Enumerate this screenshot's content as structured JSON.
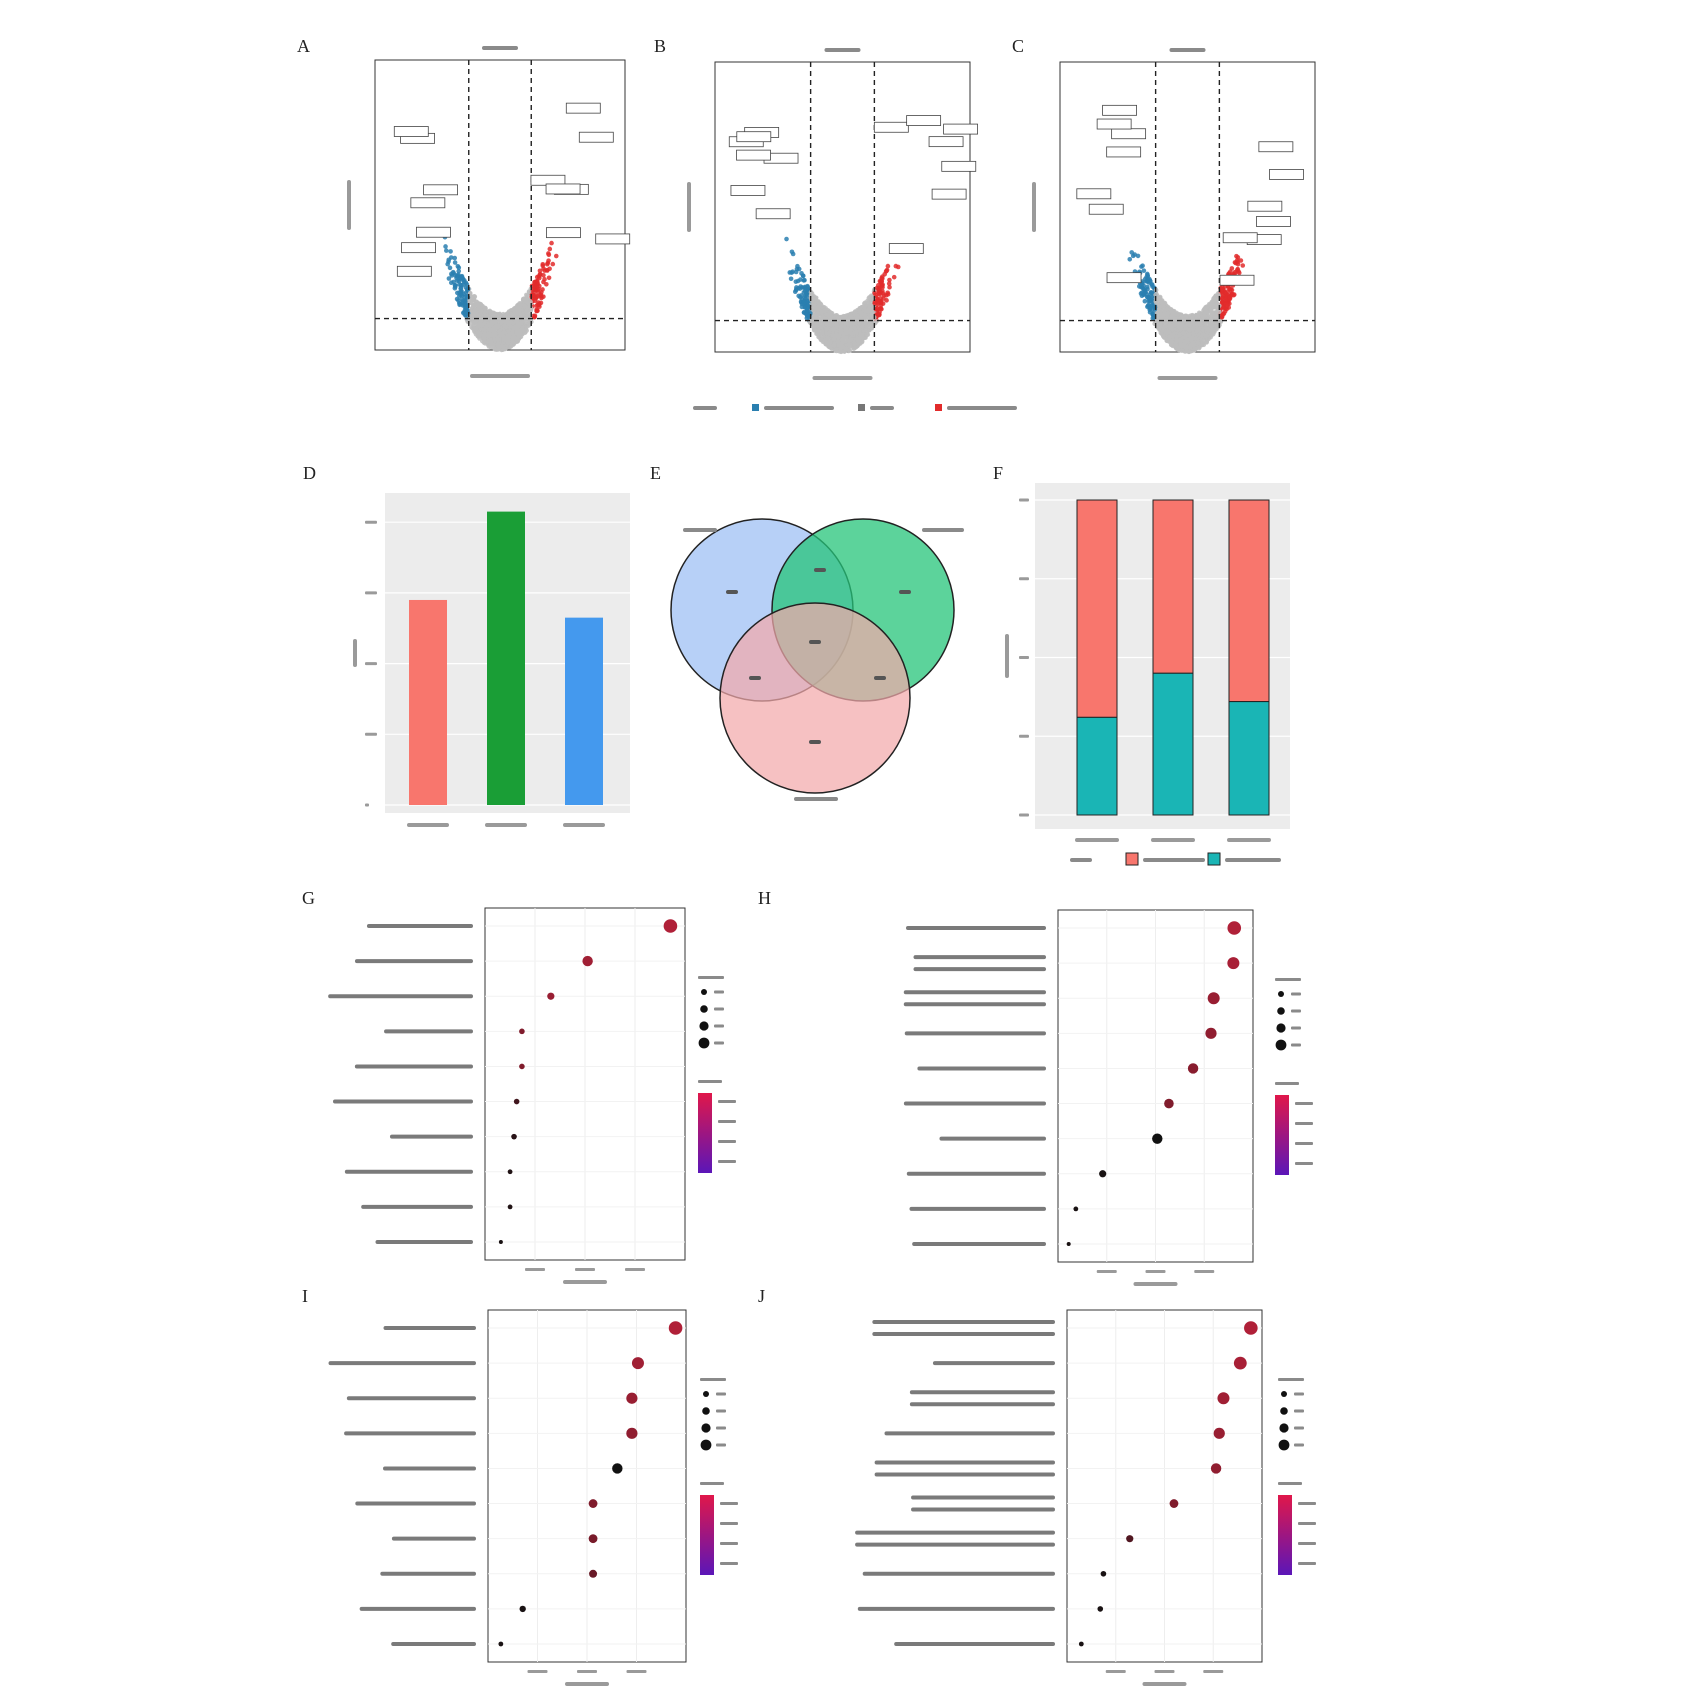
{
  "panels": {
    "A": {
      "letter": "A"
    },
    "B": {
      "letter": "B"
    },
    "C": {
      "letter": "C"
    },
    "D": {
      "letter": "D"
    },
    "E": {
      "letter": "E"
    },
    "F": {
      "letter": "F"
    },
    "G": {
      "letter": "G"
    },
    "H": {
      "letter": "H"
    },
    "I": {
      "letter": "I"
    },
    "J": {
      "letter": "J"
    }
  },
  "colors": {
    "down": "#2a7fb0",
    "up": "#e22b2b",
    "none": "#bdbdbd",
    "bar_red": "#f8766d",
    "bar_green": "#1a9e36",
    "bar_blue": "#4499ee",
    "venn_blue": "#9fc0f4",
    "venn_green": "#26c47a",
    "venn_pink": "#f2a9ab",
    "stack_up": "#f8766d",
    "stack_down": "#1ab5b5",
    "dot_high": "#b02038",
    "dot_low": "#111111",
    "grad_top": "#e0174a",
    "grad_bottom": "#5b16b8"
  },
  "chart_data": [
    {
      "id": "A",
      "type": "scatter",
      "subtype": "volcano",
      "vlines": [
        -1,
        1
      ],
      "xlim": [
        -4,
        4
      ],
      "ylim": [
        0,
        12
      ]
    },
    {
      "id": "B",
      "type": "scatter",
      "subtype": "volcano",
      "vlines": [
        -1,
        1
      ],
      "xlim": [
        -4,
        4
      ],
      "ylim": [
        0,
        12
      ]
    },
    {
      "id": "C",
      "type": "scatter",
      "subtype": "volcano",
      "vlines": [
        -1,
        1
      ],
      "xlim": [
        -4,
        4
      ],
      "ylim": [
        0,
        12
      ]
    },
    {
      "id": "D",
      "type": "bar",
      "values": [
        2900,
        4150,
        2650
      ],
      "ylim": [
        0,
        4300
      ],
      "grid": true
    },
    {
      "id": "E",
      "type": "venn",
      "sets": 3
    },
    {
      "id": "F",
      "type": "bar",
      "stacked": true,
      "percent": true,
      "series": [
        {
          "values": [
            0.69,
            0.55,
            0.64
          ]
        },
        {
          "values": [
            0.31,
            0.45,
            0.36
          ]
        }
      ]
    },
    {
      "id": "G",
      "type": "scatter",
      "subtype": "dot-enrichment",
      "xlim": [
        0.03,
        0.17
      ],
      "points": [
        {
          "x": 0.165,
          "size": 34,
          "p": 0.0
        },
        {
          "x": 0.102,
          "size": 26,
          "p": 0.1
        },
        {
          "x": 0.074,
          "size": 18,
          "p": 0.15
        },
        {
          "x": 0.052,
          "size": 14,
          "p": 0.3
        },
        {
          "x": 0.052,
          "size": 14,
          "p": 0.3
        },
        {
          "x": 0.048,
          "size": 14,
          "p": 0.7
        },
        {
          "x": 0.046,
          "size": 14,
          "p": 0.85
        },
        {
          "x": 0.043,
          "size": 12,
          "p": 0.9
        },
        {
          "x": 0.043,
          "size": 12,
          "p": 0.9
        },
        {
          "x": 0.036,
          "size": 10,
          "p": 0.95
        }
      ]
    },
    {
      "id": "H",
      "type": "scatter",
      "subtype": "dot-enrichment",
      "xlim": [
        0.0,
        0.2
      ],
      "points": [
        {
          "x": 0.188,
          "size": 34,
          "p": 0.0
        },
        {
          "x": 0.187,
          "size": 30,
          "p": 0.05
        },
        {
          "x": 0.165,
          "size": 30,
          "p": 0.15
        },
        {
          "x": 0.162,
          "size": 28,
          "p": 0.2
        },
        {
          "x": 0.142,
          "size": 26,
          "p": 0.25
        },
        {
          "x": 0.115,
          "size": 24,
          "p": 0.3
        },
        {
          "x": 0.102,
          "size": 26,
          "p": 1.0
        },
        {
          "x": 0.041,
          "size": 18,
          "p": 0.95
        },
        {
          "x": 0.011,
          "size": 12,
          "p": 0.95
        },
        {
          "x": 0.003,
          "size": 10,
          "p": 0.95
        }
      ]
    },
    {
      "id": "I",
      "type": "scatter",
      "subtype": "dot-enrichment",
      "xlim": [
        0.003,
        0.018
      ],
      "points": [
        {
          "x": 0.0178,
          "size": 34,
          "p": 0.0
        },
        {
          "x": 0.0147,
          "size": 30,
          "p": 0.1
        },
        {
          "x": 0.0142,
          "size": 28,
          "p": 0.15
        },
        {
          "x": 0.0142,
          "size": 28,
          "p": 0.2
        },
        {
          "x": 0.013,
          "size": 26,
          "p": 1.0
        },
        {
          "x": 0.011,
          "size": 22,
          "p": 0.3
        },
        {
          "x": 0.011,
          "size": 22,
          "p": 0.35
        },
        {
          "x": 0.011,
          "size": 20,
          "p": 0.45
        },
        {
          "x": 0.0052,
          "size": 16,
          "p": 0.95
        },
        {
          "x": 0.0034,
          "size": 12,
          "p": 0.95
        }
      ]
    },
    {
      "id": "J",
      "type": "scatter",
      "subtype": "dot-enrichment",
      "xlim": [
        0.0,
        0.17
      ],
      "points": [
        {
          "x": 0.167,
          "size": 34,
          "p": 0.0
        },
        {
          "x": 0.157,
          "size": 32,
          "p": 0.05
        },
        {
          "x": 0.141,
          "size": 30,
          "p": 0.1
        },
        {
          "x": 0.137,
          "size": 28,
          "p": 0.15
        },
        {
          "x": 0.134,
          "size": 26,
          "p": 0.2
        },
        {
          "x": 0.094,
          "size": 22,
          "p": 0.3
        },
        {
          "x": 0.052,
          "size": 18,
          "p": 0.6
        },
        {
          "x": 0.027,
          "size": 14,
          "p": 0.95
        },
        {
          "x": 0.024,
          "size": 14,
          "p": 0.95
        },
        {
          "x": 0.006,
          "size": 12,
          "p": 0.95
        }
      ]
    }
  ]
}
